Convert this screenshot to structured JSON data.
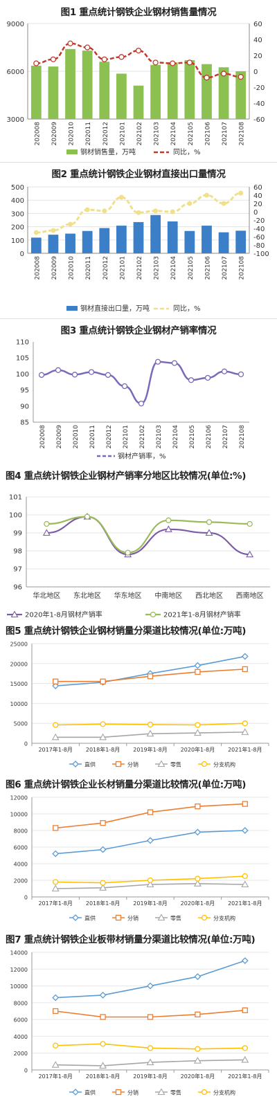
{
  "chart_data": [
    {
      "type": "bar",
      "title": "图1 重点统计钢铁企业钢材销售量情况",
      "categories": [
        "202008",
        "202009",
        "202010",
        "202011",
        "202012",
        "202101",
        "202102",
        "202103",
        "202104",
        "202105",
        "202106",
        "202107",
        "202108"
      ],
      "series": [
        {
          "name": "钢材销售量，万吨",
          "type": "bar",
          "axis": "left",
          "color": "#8cc152",
          "values": [
            6350,
            6300,
            7400,
            7300,
            6600,
            5850,
            5100,
            6400,
            6550,
            6700,
            6450,
            6250,
            6000
          ]
        },
        {
          "name": "同比，%",
          "type": "line",
          "axis": "right",
          "color": "#c0392b",
          "values": [
            10,
            15,
            35,
            30,
            15,
            18,
            26,
            11,
            10,
            11,
            -8,
            -3,
            -7
          ]
        }
      ],
      "ylim": [
        3000,
        9000
      ],
      "yticks": [
        3000,
        6000,
        9000
      ],
      "y2lim": [
        -60,
        60
      ],
      "y2ticks": [
        60,
        40,
        20,
        0,
        -20,
        -40,
        -60
      ]
    },
    {
      "type": "bar",
      "title": "图2 重点统计钢铁企业钢材直接出口量情况",
      "categories": [
        "202008",
        "202009",
        "202010",
        "202011",
        "202012",
        "202101",
        "202102",
        "202103",
        "202104",
        "202105",
        "202106",
        "202107",
        "202108"
      ],
      "series": [
        {
          "name": "钢材直接出口量，万吨",
          "type": "bar",
          "axis": "left",
          "color": "#3a7fc8",
          "values": [
            118,
            140,
            148,
            168,
            190,
            208,
            235,
            288,
            240,
            168,
            208,
            158,
            170
          ]
        },
        {
          "name": "同比，%",
          "type": "line",
          "axis": "right",
          "color": "#f1e08a",
          "values": [
            -50,
            -45,
            -30,
            5,
            2,
            35,
            -2,
            2,
            0,
            20,
            40,
            20,
            45
          ]
        }
      ],
      "ylim": [
        0,
        500
      ],
      "yticks": [
        0,
        100,
        200,
        300,
        400,
        500
      ],
      "y2lim": [
        -100,
        60
      ],
      "y2ticks": [
        60,
        40,
        20,
        0,
        -20,
        -40,
        -60,
        -80,
        -100
      ]
    },
    {
      "type": "line",
      "title": "图3 重点统计钢铁企业钢材产销率情况",
      "categories": [
        "202008",
        "202009",
        "202010",
        "202011",
        "202012",
        "202101",
        "202102",
        "202103",
        "202104",
        "202105",
        "202106",
        "202107",
        "202108"
      ],
      "series": [
        {
          "name": "钢材产销率，%",
          "color": "#7b68b8",
          "values": [
            99.7,
            101.2,
            99.8,
            100.6,
            99.7,
            96.2,
            90.8,
            103.8,
            103.4,
            98.1,
            98.8,
            100.8,
            99.9
          ]
        }
      ],
      "ylim": [
        85,
        110
      ],
      "yticks": [
        85,
        90,
        95,
        100,
        105,
        110
      ]
    },
    {
      "type": "line",
      "title": "图4 重点统计钢铁企业钢材产销率分地区比较情况(单位:%)",
      "categories": [
        "华北地区",
        "东北地区",
        "华东地区",
        "中南地区",
        "西北地区",
        "西南地区"
      ],
      "series": [
        {
          "name": "2020年1-8月钢材产销率",
          "color": "#7b5ca6",
          "values": [
            99.0,
            99.9,
            97.8,
            99.2,
            99.0,
            97.8
          ]
        },
        {
          "name": "2021年1-8月钢材产销率",
          "color": "#9bbb59",
          "values": [
            99.5,
            99.9,
            97.9,
            99.7,
            99.6,
            99.5
          ]
        }
      ],
      "ylim": [
        96,
        101
      ],
      "yticks": [
        96,
        97,
        98,
        99,
        100,
        101
      ]
    },
    {
      "type": "line",
      "title": "图5 重点统计钢铁企业钢材销量分渠道比较情况(单位:万吨)",
      "categories": [
        "2017年1-8月",
        "2018年1-8月",
        "2019年1-8月",
        "2020年1-8月",
        "2021年1-8月"
      ],
      "series": [
        {
          "name": "直供",
          "color": "#5b9bd5",
          "values": [
            14400,
            15300,
            17500,
            19500,
            21800
          ]
        },
        {
          "name": "分销",
          "color": "#ed7d31",
          "values": [
            15500,
            15500,
            16800,
            17900,
            18600
          ]
        },
        {
          "name": "零售",
          "color": "#a5a5a5",
          "values": [
            1500,
            1500,
            2400,
            2600,
            2800
          ]
        },
        {
          "name": "分支机构",
          "color": "#ffc000",
          "values": [
            4600,
            4800,
            4700,
            4600,
            5000
          ]
        }
      ],
      "ylim": [
        0,
        25000
      ],
      "yticks": [
        0,
        5000,
        10000,
        15000,
        20000,
        25000
      ]
    },
    {
      "type": "line",
      "title": "图6 重点统计钢铁企业长材销量分渠道比较情况(单位:万吨)",
      "categories": [
        "2017年1-8月",
        "2018年1-8月",
        "2019年1-8月",
        "2020年1-8月",
        "2021年1-8月"
      ],
      "series": [
        {
          "name": "直供",
          "color": "#5b9bd5",
          "values": [
            5200,
            5700,
            6800,
            7800,
            8000
          ]
        },
        {
          "name": "分销",
          "color": "#ed7d31",
          "values": [
            8300,
            8900,
            10200,
            10900,
            11200
          ]
        },
        {
          "name": "零售",
          "color": "#a5a5a5",
          "values": [
            1000,
            1100,
            1500,
            1600,
            1500
          ]
        },
        {
          "name": "分支机构",
          "color": "#ffc000",
          "values": [
            1800,
            1700,
            2000,
            2200,
            2500
          ]
        }
      ],
      "ylim": [
        0,
        12000
      ],
      "yticks": [
        0,
        2000,
        4000,
        6000,
        8000,
        10000,
        12000
      ]
    },
    {
      "type": "line",
      "title": "图7 重点统计钢铁企业板带材销量分渠道比较情况(单位:万吨)",
      "categories": [
        "2017年1-8月",
        "2018年1-8月",
        "2019年1-8月",
        "2020年1-8月",
        "2021年1-8月"
      ],
      "series": [
        {
          "name": "直供",
          "color": "#5b9bd5",
          "values": [
            8600,
            8900,
            10000,
            11100,
            13000
          ]
        },
        {
          "name": "分销",
          "color": "#ed7d31",
          "values": [
            7000,
            6300,
            6300,
            6600,
            7100
          ]
        },
        {
          "name": "零售",
          "color": "#a5a5a5",
          "values": [
            600,
            500,
            900,
            1100,
            1200
          ]
        },
        {
          "name": "分支机构",
          "color": "#ffc000",
          "values": [
            2900,
            3100,
            2600,
            2500,
            2600
          ]
        }
      ],
      "ylim": [
        0,
        14000
      ],
      "yticks": [
        0,
        2000,
        4000,
        6000,
        8000,
        10000,
        12000,
        14000
      ]
    }
  ]
}
